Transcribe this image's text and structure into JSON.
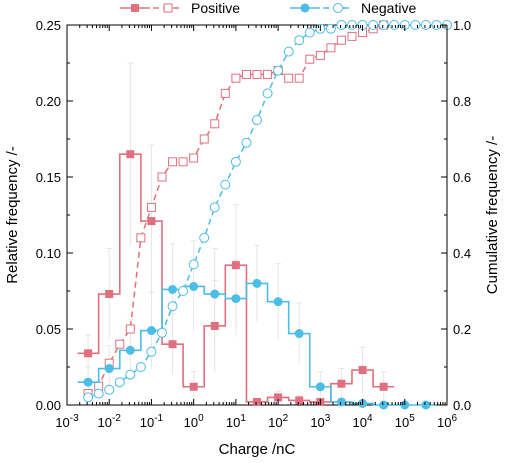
{
  "chart_data": {
    "type": "line",
    "xlabel": "Charge /nC",
    "ylabel_left": "Relative frequency /-",
    "ylabel_right": "Cumulative frequency /-",
    "xscale": "log",
    "xlim_exp": [
      -3,
      6
    ],
    "ylim_left": [
      0,
      0.25
    ],
    "ylim_right": [
      0,
      1.0
    ],
    "yticks_left": [
      "0.00",
      "0.05",
      "0.10",
      "0.15",
      "0.20",
      "0.25"
    ],
    "yticks_right": [
      "0.0",
      "0.2",
      "0.4",
      "0.6",
      "0.8",
      "1.0"
    ],
    "grid": false,
    "legend_position": "top-center",
    "colors": {
      "positive": "#e0707f",
      "negative": "#4cbde6"
    },
    "series": [
      {
        "name": "Positive",
        "kind": "relative",
        "bin_edges": [
          0.00178,
          0.00562,
          0.0178,
          0.0562,
          0.178,
          0.562,
          1.78,
          5.62,
          17.8,
          56.2,
          178,
          562,
          1780,
          5620,
          17800,
          56200
        ],
        "x": [
          0.00316,
          0.01,
          0.0316,
          0.1,
          0.316,
          1,
          3.16,
          10,
          31.6,
          100,
          316,
          1000,
          3160,
          10000,
          31600
        ],
        "y": [
          0.034,
          0.073,
          0.165,
          0.121,
          0.04,
          0.012,
          0.052,
          0.092,
          0.002,
          0.005,
          0.003,
          0.002,
          0.014,
          0.023,
          0.012
        ],
        "error": [
          0.012,
          0.03,
          0.06,
          0.05,
          0.02,
          0.01,
          0.03,
          0.04,
          0.002,
          0.004,
          0.003,
          0.002,
          0.01,
          0.015,
          0.01
        ]
      },
      {
        "name": "Positive",
        "kind": "cumulative",
        "x": [
          0.00316,
          0.00562,
          0.01,
          0.0178,
          0.0316,
          0.0562,
          0.1,
          0.178,
          0.316,
          0.562,
          1,
          1.78,
          3.16,
          5.62,
          10,
          17.8,
          31.6,
          56.2,
          100,
          178,
          316,
          562,
          1000,
          1780,
          3160,
          5620,
          10000,
          17800,
          31600
        ],
        "y": [
          0.03,
          0.05,
          0.11,
          0.16,
          0.2,
          0.44,
          0.52,
          0.6,
          0.64,
          0.64,
          0.65,
          0.7,
          0.74,
          0.82,
          0.86,
          0.87,
          0.87,
          0.87,
          0.88,
          0.86,
          0.86,
          0.91,
          0.92,
          0.94,
          0.96,
          0.97,
          0.98,
          0.99,
          1.0
        ]
      },
      {
        "name": "Negative",
        "kind": "relative",
        "bin_edges": [
          0.00178,
          0.00562,
          0.0178,
          0.0562,
          0.178,
          0.562,
          1.78,
          5.62,
          17.8,
          56.2,
          178,
          562,
          1780,
          5620,
          17800,
          56200,
          178000,
          562000
        ],
        "x": [
          0.00316,
          0.01,
          0.0316,
          0.1,
          0.316,
          1,
          3.16,
          10,
          31.6,
          100,
          316,
          1000,
          3160,
          10000,
          31600,
          100000,
          316000
        ],
        "y": [
          0.015,
          0.024,
          0.036,
          0.049,
          0.076,
          0.078,
          0.073,
          0.07,
          0.08,
          0.068,
          0.047,
          0.012,
          0.002,
          0.001,
          0.0,
          0.0,
          0.0
        ],
        "error": [
          0.01,
          0.015,
          0.02,
          0.025,
          0.03,
          0.03,
          0.03,
          0.025,
          0.025,
          0.025,
          0.02,
          0.01,
          0.002,
          0.001,
          0.0,
          0.0,
          0.0
        ]
      },
      {
        "name": "Negative",
        "kind": "cumulative",
        "x": [
          0.00316,
          0.00562,
          0.01,
          0.0178,
          0.0316,
          0.0562,
          0.1,
          0.178,
          0.316,
          0.562,
          1,
          1.78,
          3.16,
          5.62,
          10,
          17.8,
          31.6,
          56.2,
          100,
          178,
          316,
          562,
          1000,
          1780,
          3160,
          5620,
          10000,
          17800,
          31600,
          56200,
          100000,
          178000,
          316000,
          562000,
          1000000
        ],
        "y": [
          0.02,
          0.03,
          0.04,
          0.06,
          0.08,
          0.1,
          0.14,
          0.19,
          0.26,
          0.3,
          0.37,
          0.44,
          0.52,
          0.58,
          0.64,
          0.69,
          0.75,
          0.82,
          0.88,
          0.93,
          0.96,
          0.98,
          0.99,
          0.99,
          1.0,
          1.0,
          1.0,
          1.0,
          1.0,
          1.0,
          1.0,
          1.0,
          1.0,
          1.0,
          1.0
        ]
      }
    ]
  }
}
